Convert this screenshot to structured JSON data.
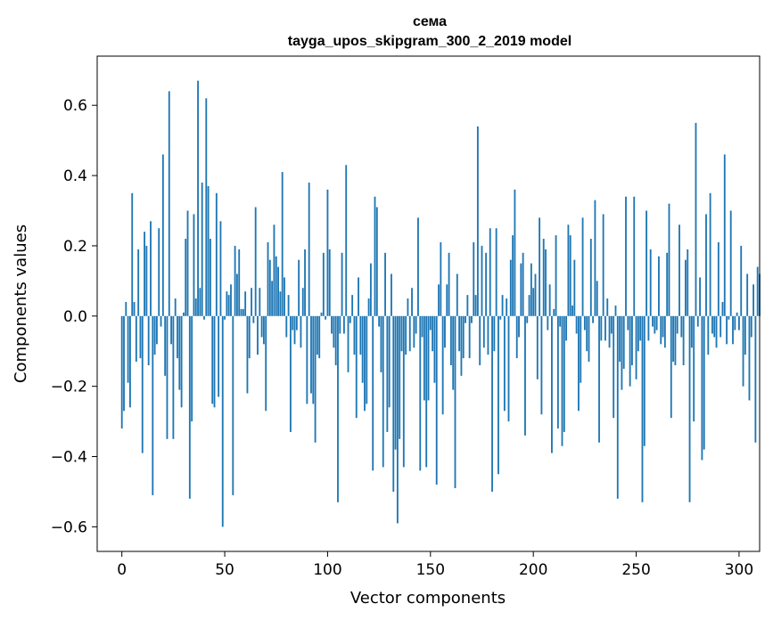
{
  "chart_data": {
    "type": "bar",
    "title": "сема",
    "subtitle": "tayga_upos_skipgram_300_2_2019 model",
    "xlabel": "Vector components",
    "ylabel": "Components values",
    "xlim": [
      -12,
      310
    ],
    "ylim": [
      -0.67,
      0.74
    ],
    "xticks": [
      0,
      50,
      100,
      150,
      200,
      250,
      300
    ],
    "yticks": [
      -0.6,
      -0.4,
      -0.2,
      0.0,
      0.2,
      0.4,
      0.6
    ],
    "xtick_labels": [
      "0",
      "50",
      "100",
      "150",
      "200",
      "250",
      "300"
    ],
    "ytick_labels": [
      "−0.6",
      "−0.4",
      "−0.2",
      "0.0",
      "0.2",
      "0.4",
      "0.6"
    ],
    "bar_color": "#1f77b4",
    "bar_width": 0.8,
    "values": [
      -0.32,
      -0.27,
      0.04,
      -0.19,
      -0.26,
      0.35,
      0.04,
      -0.13,
      0.19,
      -0.12,
      -0.39,
      0.24,
      0.2,
      -0.14,
      0.27,
      -0.51,
      -0.11,
      -0.08,
      0.25,
      -0.03,
      0.46,
      -0.17,
      -0.35,
      0.64,
      -0.08,
      -0.35,
      0.05,
      -0.12,
      -0.21,
      -0.26,
      0.01,
      0.22,
      0.3,
      -0.52,
      -0.3,
      0.29,
      0.05,
      0.67,
      0.08,
      0.38,
      -0.01,
      0.62,
      0.37,
      0.22,
      -0.25,
      -0.26,
      0.35,
      -0.23,
      0.27,
      -0.6,
      -0.01,
      0.07,
      0.06,
      0.09,
      -0.51,
      0.2,
      0.12,
      0.19,
      0.02,
      0.02,
      0.07,
      -0.22,
      -0.12,
      0.08,
      -0.02,
      0.31,
      -0.11,
      0.08,
      -0.06,
      -0.08,
      -0.27,
      0.21,
      0.16,
      0.1,
      0.26,
      0.17,
      0.14,
      0.07,
      0.41,
      0.11,
      -0.06,
      0.06,
      -0.33,
      -0.04,
      -0.08,
      -0.04,
      0.16,
      -0.09,
      0.08,
      0.19,
      -0.25,
      0.38,
      -0.22,
      -0.25,
      -0.36,
      -0.11,
      -0.12,
      0.01,
      0.18,
      -0.01,
      0.36,
      0.19,
      -0.05,
      -0.09,
      -0.14,
      -0.53,
      -0.05,
      0.18,
      -0.05,
      0.43,
      -0.16,
      -0.02,
      0.06,
      -0.11,
      -0.29,
      0.11,
      -0.11,
      -0.19,
      -0.27,
      -0.25,
      0.05,
      0.15,
      -0.44,
      0.34,
      0.31,
      -0.03,
      -0.16,
      -0.43,
      0.18,
      -0.33,
      -0.26,
      0.12,
      -0.5,
      -0.38,
      -0.59,
      -0.35,
      -0.1,
      -0.43,
      -0.11,
      0.05,
      -0.1,
      0.08,
      -0.09,
      -0.05,
      0.28,
      -0.44,
      -0.06,
      -0.24,
      -0.43,
      -0.24,
      -0.04,
      -0.1,
      -0.19,
      -0.48,
      0.09,
      0.21,
      -0.28,
      -0.09,
      0.09,
      0.18,
      -0.14,
      -0.21,
      -0.49,
      0.12,
      -0.1,
      -0.17,
      -0.12,
      -0.02,
      0.06,
      -0.12,
      -0.02,
      0.21,
      0.06,
      0.54,
      -0.14,
      0.2,
      -0.09,
      0.18,
      -0.11,
      0.25,
      -0.5,
      -0.1,
      0.25,
      -0.45,
      -0.01,
      0.06,
      -0.27,
      0.05,
      -0.3,
      0.16,
      0.23,
      0.36,
      -0.12,
      -0.06,
      0.15,
      0.18,
      -0.34,
      -0.02,
      0.06,
      0.15,
      0.08,
      0.12,
      -0.18,
      0.28,
      -0.28,
      0.22,
      0.19,
      -0.04,
      0.09,
      -0.39,
      0.02,
      0.23,
      -0.32,
      -0.03,
      -0.37,
      -0.33,
      -0.07,
      0.26,
      0.23,
      0.03,
      0.16,
      -0.05,
      -0.27,
      -0.19,
      0.28,
      -0.04,
      -0.1,
      -0.13,
      0.22,
      -0.02,
      0.33,
      0.1,
      -0.36,
      -0.07,
      0.29,
      -0.07,
      0.05,
      -0.09,
      -0.05,
      -0.29,
      0.03,
      -0.52,
      -0.13,
      -0.21,
      -0.15,
      0.34,
      -0.04,
      -0.2,
      -0.14,
      0.34,
      -0.18,
      -0.1,
      -0.07,
      -0.53,
      -0.37,
      0.3,
      -0.07,
      0.19,
      -0.03,
      -0.05,
      -0.04,
      0.17,
      -0.08,
      -0.06,
      -0.09,
      0.18,
      0.32,
      -0.29,
      -0.13,
      -0.14,
      -0.05,
      0.26,
      -0.06,
      -0.14,
      0.16,
      0.19,
      -0.53,
      -0.09,
      -0.3,
      0.55,
      -0.03,
      0.11,
      -0.41,
      -0.38,
      0.29,
      -0.11,
      0.35,
      -0.05,
      -0.06,
      -0.09,
      0.21,
      -0.06,
      0.04,
      0.46,
      -0.08,
      -0.01,
      0.3,
      -0.08,
      -0.04,
      0.01,
      -0.04,
      0.2,
      -0.2,
      -0.11,
      0.12,
      -0.24,
      -0.06,
      0.09,
      -0.36,
      0.14,
      0.12
    ]
  }
}
